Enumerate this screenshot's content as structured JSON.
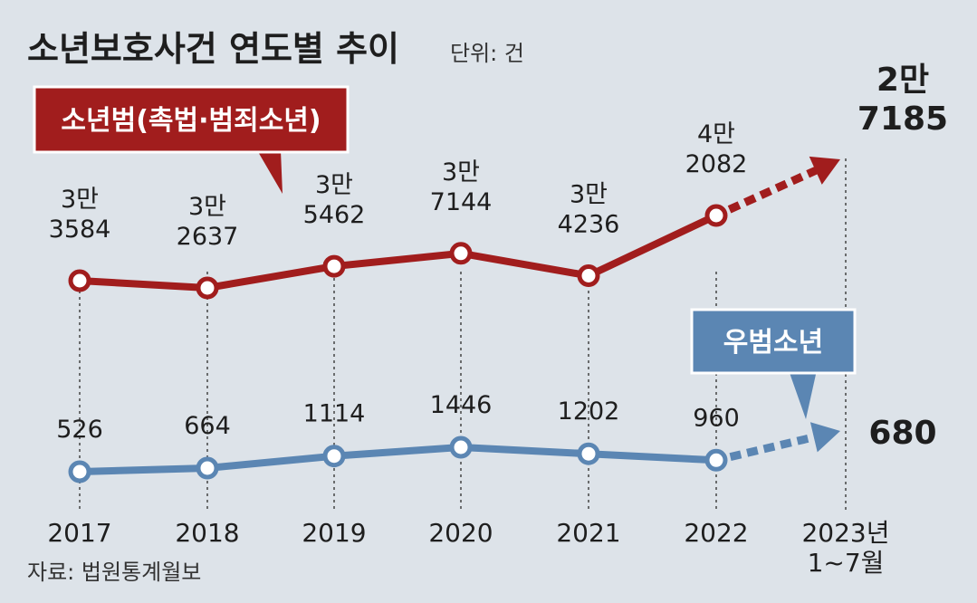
{
  "header": {
    "title": "소년보호사건 연도별 추이",
    "unit": "단위: 건"
  },
  "source": "자료: 법원통계월보",
  "chart_data": {
    "type": "line",
    "title": "소년보호사건 연도별 추이",
    "unit": "단위: 건",
    "categories": [
      "2017",
      "2018",
      "2019",
      "2020",
      "2021",
      "2022",
      "2023년 1~7월"
    ],
    "x_tick_lines": [
      [
        "2017"
      ],
      [
        "2018"
      ],
      [
        "2019"
      ],
      [
        "2020"
      ],
      [
        "2021"
      ],
      [
        "2022"
      ],
      [
        "2023년",
        "1~7월"
      ]
    ],
    "series": [
      {
        "name": "소년범(촉법·범죄소년)",
        "color": "#a11d1d",
        "values": [
          33584,
          32637,
          35462,
          37144,
          34236,
          42082,
          27185
        ],
        "labels": [
          [
            "3만",
            "3584"
          ],
          [
            "3만",
            "2637"
          ],
          [
            "3만",
            "5462"
          ],
          [
            "3만",
            "7144"
          ],
          [
            "3만",
            "4236"
          ],
          [
            "4만",
            "2082"
          ],
          [
            "2만",
            "7185"
          ]
        ]
      },
      {
        "name": "우범소년",
        "color": "#5b86b3",
        "values": [
          526,
          664,
          1114,
          1446,
          1202,
          960,
          680
        ],
        "labels": [
          [
            "526"
          ],
          [
            "664"
          ],
          [
            "1114"
          ],
          [
            "1446"
          ],
          [
            "1202"
          ],
          [
            "960"
          ],
          [
            "680"
          ]
        ]
      }
    ],
    "last_point_partial_year": true
  }
}
